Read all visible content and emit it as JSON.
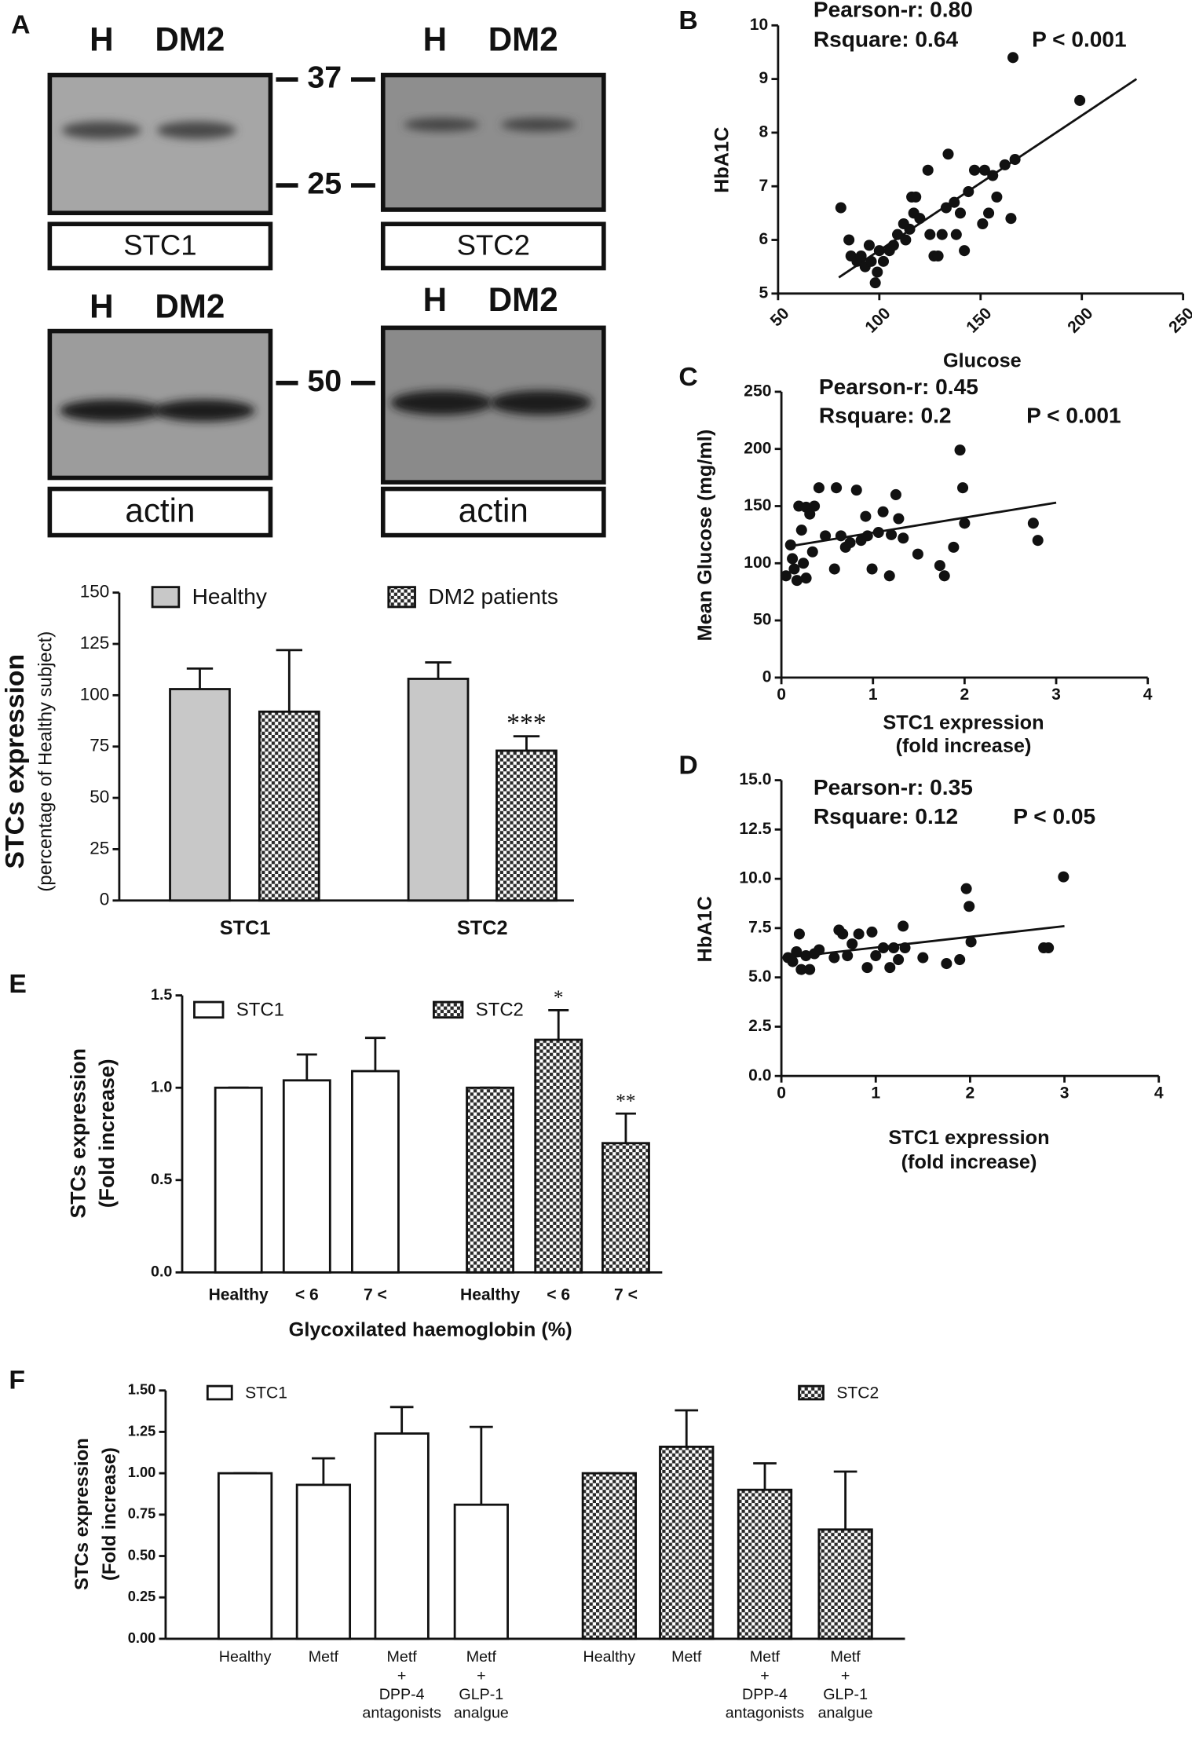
{
  "blots": {
    "panel": "A",
    "lanes": [
      "H",
      "DM2"
    ],
    "markers": [
      "37",
      "25",
      "50"
    ],
    "labels": [
      "STC1",
      "STC2",
      "actin",
      "actin"
    ]
  },
  "chart_data": [
    {
      "type": "bar",
      "ylabel": [
        "STCs expression",
        "(percentage of Healthy subject)"
      ],
      "categories": [
        "STC1",
        "STC2"
      ],
      "series": [
        {
          "name": "Healthy",
          "color": "#c8c8c8",
          "values": [
            103,
            108
          ],
          "errors": [
            10,
            8
          ]
        },
        {
          "name": "DM2 patients",
          "color": "#2a2a2a",
          "hatched": true,
          "values": [
            92,
            73
          ],
          "errors": [
            30,
            7
          ],
          "marks": [
            null,
            "***"
          ]
        }
      ],
      "ylim": [
        0,
        150
      ],
      "yticks": [
        0,
        25,
        50,
        75,
        100,
        125,
        150
      ]
    },
    {
      "type": "scatter",
      "panel": "B",
      "xlabel": [
        "Glucose"
      ],
      "ylabel": [
        "HbA1C"
      ],
      "annotations": [
        "Pearson-r: 0.80",
        "Rsquare: 0.64",
        "P < 0.001"
      ],
      "x": [
        81,
        85,
        86,
        89,
        91,
        93,
        95,
        96,
        98,
        99,
        100,
        102,
        105,
        107,
        109,
        112,
        113,
        115,
        116,
        117,
        118,
        120,
        124,
        125,
        127,
        129,
        131,
        133,
        134,
        137,
        138,
        140,
        142,
        144,
        147,
        151,
        152,
        154,
        156,
        158,
        162,
        165,
        166,
        167,
        199
      ],
      "y": [
        6.6,
        6.0,
        5.7,
        5.6,
        5.7,
        5.5,
        5.9,
        5.6,
        5.2,
        5.4,
        5.8,
        5.6,
        5.8,
        5.9,
        6.1,
        6.3,
        6.0,
        6.2,
        6.8,
        6.5,
        6.8,
        6.4,
        7.3,
        6.1,
        5.7,
        5.7,
        6.1,
        6.6,
        7.6,
        6.7,
        6.1,
        6.5,
        5.8,
        6.9,
        7.3,
        6.3,
        7.3,
        6.5,
        7.2,
        6.8,
        7.4,
        6.4,
        9.4,
        7.5,
        8.6
      ],
      "fit": {
        "x": [
          80,
          227
        ],
        "y": [
          5.3,
          9.0
        ]
      },
      "xlim": [
        50,
        250
      ],
      "xticks": [
        50,
        100,
        150,
        200,
        250
      ],
      "ylim": [
        5,
        10
      ],
      "yticks": [
        5,
        6,
        7,
        8,
        9,
        10
      ]
    },
    {
      "type": "scatter",
      "panel": "C",
      "xlabel": [
        "STC1 expression",
        "(fold increase)"
      ],
      "ylabel": [
        "Mean Glucose (mg/ml)"
      ],
      "annotations": [
        "Pearson-r: 0.45",
        "Rsquare: 0.2",
        "P < 0.001"
      ],
      "x": [
        0.05,
        0.1,
        0.12,
        0.14,
        0.17,
        0.19,
        0.22,
        0.24,
        0.27,
        0.27,
        0.31,
        0.34,
        0.36,
        0.41,
        0.48,
        0.58,
        0.6,
        0.65,
        0.7,
        0.75,
        0.82,
        0.87,
        0.92,
        0.94,
        0.99,
        1.06,
        1.11,
        1.18,
        1.2,
        1.25,
        1.28,
        1.33,
        1.49,
        1.73,
        1.78,
        1.88,
        1.95,
        1.98,
        2.0,
        2.75,
        2.8
      ],
      "y": [
        89,
        116,
        104,
        95,
        85,
        150,
        129,
        100,
        87,
        149,
        143,
        110,
        150,
        166,
        124,
        95,
        166,
        124,
        114,
        118,
        164,
        120,
        141,
        124,
        95,
        127,
        145,
        89,
        125,
        160,
        139,
        122,
        108,
        98,
        89,
        114,
        199,
        166,
        135,
        135,
        120
      ],
      "fit": {
        "x": [
          0.1,
          3.0
        ],
        "y": [
          115,
          153
        ]
      },
      "xlim": [
        0,
        4
      ],
      "xticks": [
        0,
        1,
        2,
        3,
        4
      ],
      "ylim": [
        0,
        250
      ],
      "yticks": [
        0,
        50,
        100,
        150,
        200,
        250
      ]
    },
    {
      "type": "scatter",
      "panel": "D",
      "xlabel": [
        "STC1 expression",
        "(fold increase)"
      ],
      "ylabel": [
        "HbA1C"
      ],
      "annotations": [
        "Pearson-r: 0.35",
        "Rsquare: 0.12",
        "P < 0.05"
      ],
      "x": [
        0.07,
        0.12,
        0.16,
        0.19,
        0.21,
        0.26,
        0.3,
        0.35,
        0.4,
        0.56,
        0.61,
        0.65,
        0.7,
        0.75,
        0.82,
        0.91,
        0.96,
        1.0,
        1.08,
        1.15,
        1.19,
        1.24,
        1.29,
        1.31,
        1.5,
        1.75,
        1.89,
        1.96,
        1.99,
        2.01,
        2.78,
        2.83,
        2.99
      ],
      "y": [
        6.0,
        5.8,
        6.3,
        7.2,
        5.4,
        6.1,
        5.4,
        6.2,
        6.4,
        6.0,
        7.4,
        7.2,
        6.1,
        6.7,
        7.2,
        5.5,
        7.3,
        6.1,
        6.5,
        5.5,
        6.5,
        5.9,
        7.6,
        6.5,
        6.0,
        5.7,
        5.9,
        9.5,
        8.6,
        6.8,
        6.5,
        6.5,
        10.1
      ],
      "fit": {
        "x": [
          0.05,
          3.0
        ],
        "y": [
          6.0,
          7.6
        ]
      },
      "xlim": [
        0,
        4
      ],
      "xticks": [
        0,
        1,
        2,
        3,
        4
      ],
      "ylim": [
        0,
        15
      ],
      "yticks": [
        {
          "value": 0,
          "label": "0.0"
        },
        {
          "value": 2.5,
          "label": "2.5"
        },
        {
          "value": 5,
          "label": "5.0"
        },
        {
          "value": 7.5,
          "label": "7.5"
        },
        {
          "value": 10,
          "label": "10.0"
        },
        {
          "value": 12.5,
          "label": "12.5"
        },
        {
          "value": 15,
          "label": "15.0"
        }
      ]
    },
    {
      "type": "bar",
      "panel": "E",
      "ylabel": [
        "STCs  expression",
        "(Fold increase)"
      ],
      "xlabel": [
        "Glycoxilated haemoglobin (%)"
      ],
      "series": [
        {
          "name": "STC1",
          "color": "#ffffff",
          "categories": [
            "Healthy",
            "< 6",
            "7 <"
          ],
          "values": [
            1.0,
            1.04,
            1.09
          ],
          "errors": [
            0,
            0.14,
            0.18
          ]
        },
        {
          "name": "STC2",
          "color": "#2a2a2a",
          "hatched": true,
          "categories": [
            "Healthy",
            "< 6",
            "7 <"
          ],
          "values": [
            1.0,
            1.26,
            0.7
          ],
          "errors": [
            0,
            0.16,
            0.16
          ],
          "marks": [
            null,
            "*",
            "**"
          ]
        }
      ],
      "ylim": [
        0,
        1.5
      ],
      "yticks": [
        {
          "value": 0,
          "label": "0.0"
        },
        {
          "value": 0.5,
          "label": "0.5"
        },
        {
          "value": 1,
          "label": "1.0"
        },
        {
          "value": 1.5,
          "label": "1.5"
        }
      ]
    },
    {
      "type": "bar",
      "panel": "F",
      "ylabel": [
        "STCs  expression",
        "(Fold increase)"
      ],
      "series": [
        {
          "name": "STC1",
          "color": "#ffffff",
          "categories": [
            [
              "Healthy"
            ],
            [
              "Metf"
            ],
            [
              "Metf",
              "+",
              "DPP-4",
              "antagonists"
            ],
            [
              "Metf",
              "+",
              "GLP-1",
              "analgue"
            ]
          ],
          "values": [
            1.0,
            0.93,
            1.24,
            0.81
          ],
          "errors": [
            0,
            0.16,
            0.16,
            0.47
          ]
        },
        {
          "name": "STC2",
          "color": "#2a2a2a",
          "hatched": true,
          "categories": [
            [
              "Healthy"
            ],
            [
              "Metf"
            ],
            [
              "Metf",
              "+",
              "DPP-4",
              "antagonists"
            ],
            [
              "Metf",
              "+",
              "GLP-1",
              "analgue"
            ]
          ],
          "values": [
            1.0,
            1.16,
            0.9,
            0.66
          ],
          "errors": [
            0,
            0.22,
            0.16,
            0.35
          ]
        }
      ],
      "ylim": [
        0,
        1.5
      ],
      "yticks": [
        {
          "value": 0,
          "label": "0.00"
        },
        {
          "value": 0.25,
          "label": "0.25"
        },
        {
          "value": 0.5,
          "label": "0.50"
        },
        {
          "value": 0.75,
          "label": "0.75"
        },
        {
          "value": 1,
          "label": "1.00"
        },
        {
          "value": 1.25,
          "label": "1.25"
        },
        {
          "value": 1.5,
          "label": "1.50"
        }
      ]
    }
  ]
}
